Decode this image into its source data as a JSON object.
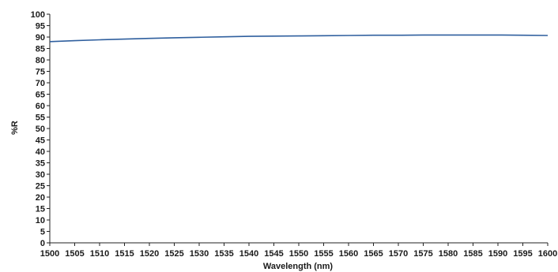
{
  "chart_data": {
    "type": "line",
    "title": "",
    "xlabel": "Wavelength (nm)",
    "ylabel": "%R",
    "xlim": [
      1500,
      1600
    ],
    "ylim": [
      0,
      100
    ],
    "x_ticks": [
      1500,
      1505,
      1510,
      1515,
      1520,
      1525,
      1530,
      1535,
      1540,
      1545,
      1550,
      1555,
      1560,
      1565,
      1570,
      1575,
      1580,
      1585,
      1590,
      1595,
      1600
    ],
    "y_ticks": [
      0,
      5,
      10,
      15,
      20,
      25,
      30,
      35,
      40,
      45,
      50,
      55,
      60,
      65,
      70,
      75,
      80,
      85,
      90,
      95,
      100
    ],
    "grid": false,
    "line_color": "#2f5f9e",
    "series": [
      {
        "x": [
          1500,
          1505,
          1510,
          1515,
          1520,
          1525,
          1530,
          1535,
          1540,
          1545,
          1550,
          1555,
          1560,
          1565,
          1570,
          1575,
          1580,
          1585,
          1590,
          1595,
          1600
        ],
        "values": [
          88.0,
          88.4,
          88.8,
          89.1,
          89.4,
          89.7,
          89.9,
          90.1,
          90.3,
          90.4,
          90.5,
          90.6,
          90.7,
          90.8,
          90.8,
          90.9,
          90.9,
          90.9,
          90.9,
          90.8,
          90.7
        ]
      }
    ]
  }
}
